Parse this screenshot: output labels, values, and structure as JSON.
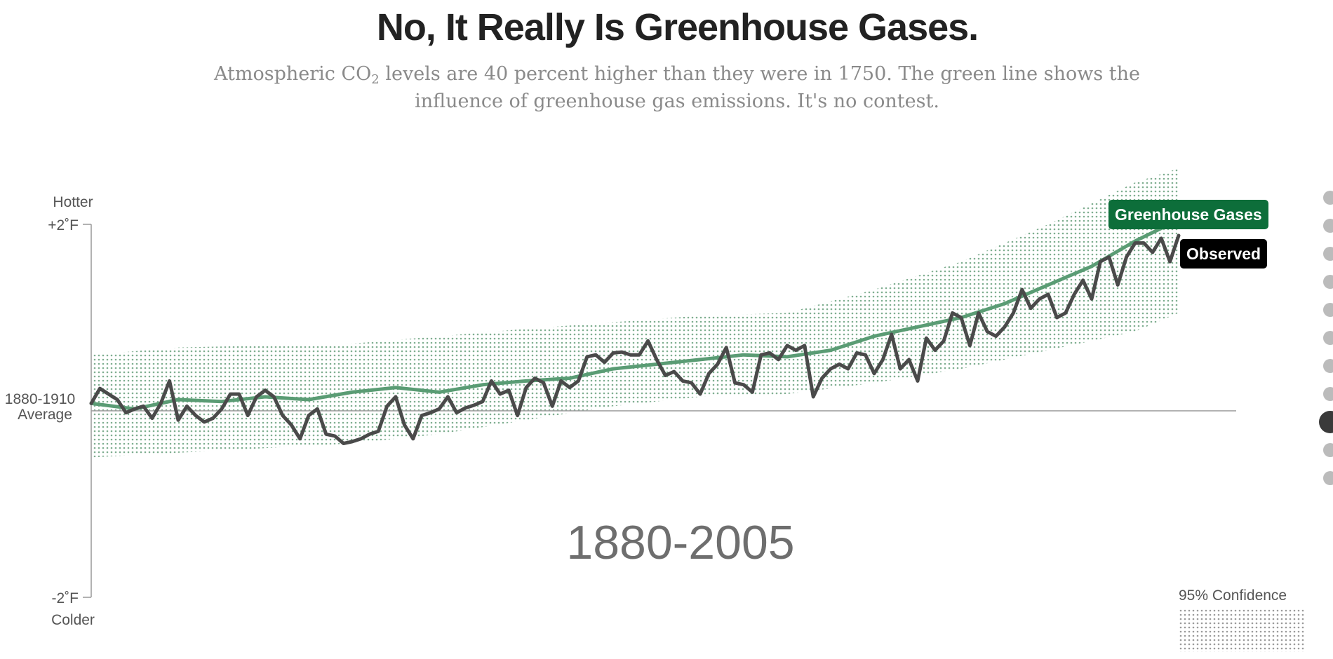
{
  "header": {
    "title": "No, It Really Is Greenhouse Gases.",
    "subtitle_before": "Atmospheric CO",
    "subtitle_sub": "2",
    "subtitle_after": " levels are 40 percent higher than they were in 1750. The green line shows the influence of greenhouse gas emissions. It's no contest."
  },
  "axis": {
    "hotter": "Hotter",
    "top_tick": "+2˚F",
    "baseline_line1": "1880-1910",
    "baseline_line2": "Average",
    "bottom_tick": "-2˚F",
    "colder": "Colder"
  },
  "period_label": "1880-2005",
  "legend": {
    "confidence_label": "95% Confidence"
  },
  "nav": {
    "count": 11,
    "active": 8
  },
  "chart_data": {
    "type": "line",
    "xlim": [
      1880,
      2005
    ],
    "ylim": [
      -2,
      2
    ],
    "yunit": "°F",
    "ticks": [
      "+2˚F",
      "-2˚F"
    ],
    "baseline": {
      "value": 0,
      "label": "1880-1910 Average"
    },
    "grid": false,
    "colors": {
      "greenhouse": "#5a9c74",
      "observed": "#4a4a4a",
      "band": "#7fae90",
      "ghg_label_bg": "#0d6e3a",
      "obs_label_bg": "#000000"
    },
    "series": [
      {
        "name": "Greenhouse Gases",
        "x": [
          1880,
          1885,
          1890,
          1895,
          1900,
          1905,
          1910,
          1915,
          1920,
          1925,
          1930,
          1935,
          1940,
          1945,
          1950,
          1955,
          1960,
          1965,
          1970,
          1975,
          1980,
          1985,
          1990,
          1995,
          2000,
          2005
        ],
        "y": [
          0.08,
          0.02,
          0.12,
          0.1,
          0.15,
          0.12,
          0.2,
          0.25,
          0.2,
          0.28,
          0.32,
          0.35,
          0.45,
          0.5,
          0.55,
          0.6,
          0.58,
          0.65,
          0.8,
          0.9,
          1.0,
          1.15,
          1.35,
          1.55,
          1.82,
          2.05
        ]
      },
      {
        "name": "Observed",
        "x": [
          1880,
          1881,
          1882,
          1883,
          1884,
          1885,
          1886,
          1887,
          1888,
          1889,
          1890,
          1891,
          1892,
          1893,
          1894,
          1895,
          1896,
          1897,
          1898,
          1899,
          1900,
          1901,
          1902,
          1903,
          1904,
          1905,
          1906,
          1907,
          1908,
          1909,
          1910,
          1911,
          1912,
          1913,
          1914,
          1915,
          1916,
          1917,
          1918,
          1919,
          1920,
          1921,
          1922,
          1923,
          1924,
          1925,
          1926,
          1927,
          1928,
          1929,
          1930,
          1931,
          1932,
          1933,
          1934,
          1935,
          1936,
          1937,
          1938,
          1939,
          1940,
          1941,
          1942,
          1943,
          1944,
          1945,
          1946,
          1947,
          1948,
          1949,
          1950,
          1951,
          1952,
          1953,
          1954,
          1955,
          1956,
          1957,
          1958,
          1959,
          1960,
          1961,
          1962,
          1963,
          1964,
          1965,
          1966,
          1967,
          1968,
          1969,
          1970,
          1971,
          1972,
          1973,
          1974,
          1975,
          1976,
          1977,
          1978,
          1979,
          1980,
          1981,
          1982,
          1983,
          1984,
          1985,
          1986,
          1987,
          1988,
          1989,
          1990,
          1991,
          1992,
          1993,
          1994,
          1995,
          1996,
          1997,
          1998,
          1999,
          2000,
          2001,
          2002,
          2003,
          2004,
          2005
        ],
        "y": [
          0.08,
          0.24,
          0.18,
          0.12,
          -0.02,
          0.02,
          0.05,
          -0.08,
          0.08,
          0.32,
          -0.1,
          0.05,
          -0.05,
          -0.12,
          -0.08,
          0.02,
          0.18,
          0.18,
          -0.05,
          0.15,
          0.22,
          0.15,
          -0.05,
          -0.15,
          -0.3,
          -0.05,
          0.02,
          -0.25,
          -0.27,
          -0.35,
          -0.33,
          -0.3,
          -0.25,
          -0.22,
          0.05,
          0.15,
          -0.15,
          -0.3,
          -0.05,
          -0.02,
          0.02,
          0.15,
          -0.02,
          0.03,
          0.06,
          0.1,
          0.32,
          0.18,
          0.22,
          -0.05,
          0.25,
          0.35,
          0.3,
          0.05,
          0.32,
          0.25,
          0.32,
          0.58,
          0.6,
          0.52,
          0.62,
          0.63,
          0.6,
          0.6,
          0.75,
          0.55,
          0.38,
          0.42,
          0.32,
          0.3,
          0.18,
          0.4,
          0.5,
          0.68,
          0.3,
          0.28,
          0.2,
          0.6,
          0.62,
          0.55,
          0.7,
          0.65,
          0.7,
          0.15,
          0.35,
          0.45,
          0.5,
          0.45,
          0.62,
          0.6,
          0.4,
          0.55,
          0.82,
          0.45,
          0.55,
          0.32,
          0.78,
          0.65,
          0.75,
          1.05,
          1.0,
          0.7,
          1.05,
          0.85,
          0.8,
          0.9,
          1.05,
          1.3,
          1.1,
          1.2,
          1.25,
          1.0,
          1.05,
          1.25,
          1.4,
          1.2,
          1.6,
          1.65,
          1.35,
          1.65,
          1.8,
          1.8,
          1.7,
          1.85,
          1.6,
          1.88
        ]
      }
    ],
    "confidence_band": {
      "name": "95% Confidence",
      "x": [
        1880,
        1890,
        1900,
        1910,
        1920,
        1930,
        1940,
        1950,
        1960,
        1970,
        1980,
        1990,
        2000,
        2005
      ],
      "lower": [
        -0.5,
        -0.45,
        -0.4,
        -0.35,
        -0.25,
        -0.1,
        0.05,
        0.15,
        0.18,
        0.3,
        0.45,
        0.65,
        0.85,
        1.05
      ],
      "upper": [
        0.6,
        0.68,
        0.7,
        0.72,
        0.8,
        0.88,
        0.95,
        1.02,
        1.05,
        1.3,
        1.6,
        2.0,
        2.45,
        2.6
      ]
    }
  }
}
